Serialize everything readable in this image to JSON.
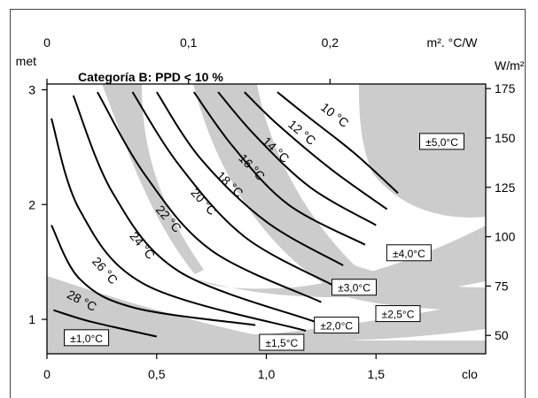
{
  "chart_data": {
    "type": "line",
    "title": "Categoría B: PPD < 10 %",
    "bottom_axis": {
      "unit": "clo",
      "range": [
        0,
        2.0
      ],
      "ticks": [
        0,
        0.5,
        1.0,
        1.5
      ],
      "tick_labels": [
        "0",
        "0,5",
        "1,0",
        "1,5"
      ]
    },
    "top_axis": {
      "unit": "m². °C/W",
      "range": [
        0,
        0.31
      ],
      "ticks": [
        0,
        0.1,
        0.2
      ],
      "tick_labels": [
        "0",
        "0,1",
        "0,2"
      ]
    },
    "left_axis": {
      "unit": "met",
      "range": [
        0.7,
        3.05
      ],
      "ticks": [
        1,
        2,
        3
      ],
      "tick_labels": [
        "1",
        "2",
        "3"
      ]
    },
    "right_axis": {
      "unit": "W/m²",
      "range": [
        40.7,
        177.3
      ],
      "ticks": [
        50,
        75,
        100,
        125,
        150,
        175
      ],
      "tick_labels": [
        "50",
        "75",
        "100",
        "125",
        "150",
        "175"
      ]
    },
    "series": [
      {
        "name": "10 °C",
        "label_at": [
          1.3,
          2.75
        ],
        "points": [
          [
            1.05,
            2.98
          ],
          [
            1.2,
            2.75
          ],
          [
            1.4,
            2.45
          ],
          [
            1.6,
            2.1
          ]
        ]
      },
      {
        "name": "12 °C",
        "label_at": [
          1.15,
          2.6
        ],
        "points": [
          [
            0.9,
            2.98
          ],
          [
            1.05,
            2.7
          ],
          [
            1.3,
            2.3
          ],
          [
            1.55,
            1.96
          ]
        ]
      },
      {
        "name": "14 °C",
        "label_at": [
          1.03,
          2.45
        ],
        "points": [
          [
            0.78,
            2.98
          ],
          [
            0.95,
            2.6
          ],
          [
            1.2,
            2.15
          ],
          [
            1.5,
            1.82
          ]
        ]
      },
      {
        "name": "16 °C",
        "label_at": [
          0.92,
          2.3
        ],
        "points": [
          [
            0.67,
            2.98
          ],
          [
            0.85,
            2.5
          ],
          [
            1.1,
            2.0
          ],
          [
            1.45,
            1.65
          ]
        ]
      },
      {
        "name": "18 °C",
        "label_at": [
          0.82,
          2.15
        ],
        "points": [
          [
            0.5,
            2.98
          ],
          [
            0.7,
            2.4
          ],
          [
            1.0,
            1.85
          ],
          [
            1.35,
            1.47
          ]
        ]
      },
      {
        "name": "20 °C",
        "label_at": [
          0.7,
          2.0
        ],
        "points": [
          [
            0.39,
            2.98
          ],
          [
            0.6,
            2.35
          ],
          [
            0.9,
            1.72
          ],
          [
            1.3,
            1.3
          ]
        ]
      },
      {
        "name": "22 °C",
        "label_at": [
          0.54,
          1.85
        ],
        "points": [
          [
            0.23,
            2.98
          ],
          [
            0.45,
            2.25
          ],
          [
            0.75,
            1.6
          ],
          [
            1.25,
            1.15
          ]
        ]
      },
      {
        "name": "24 °C",
        "label_at": [
          0.42,
          1.62
        ],
        "points": [
          [
            0.12,
            2.95
          ],
          [
            0.3,
            2.1
          ],
          [
            0.6,
            1.42
          ],
          [
            1.22,
            0.98
          ]
        ]
      },
      {
        "name": "26 °C",
        "label_at": [
          0.25,
          1.4
        ],
        "points": [
          [
            0.02,
            2.75
          ],
          [
            0.15,
            1.95
          ],
          [
            0.45,
            1.3
          ],
          [
            1.18,
            0.9
          ]
        ]
      },
      {
        "name": "28 °C",
        "label_at": [
          0.15,
          1.13
        ],
        "points": [
          [
            0.02,
            1.82
          ],
          [
            0.15,
            1.35
          ],
          [
            0.4,
            1.1
          ],
          [
            0.95,
            0.95
          ]
        ]
      },
      {
        "name": "",
        "points": [
          [
            0.03,
            1.08
          ],
          [
            0.2,
            0.98
          ],
          [
            0.5,
            0.85
          ]
        ]
      }
    ],
    "tolerance_labels": [
      {
        "text": "±1,0°C",
        "at": [
          0.18,
          0.84
        ]
      },
      {
        "text": "±1,5°C",
        "at": [
          1.07,
          0.8
        ]
      },
      {
        "text": "±2,0°C",
        "at": [
          1.32,
          0.95
        ]
      },
      {
        "text": "±2,5°C",
        "at": [
          1.6,
          1.05
        ]
      },
      {
        "text": "±3,0°C",
        "at": [
          1.4,
          1.28
        ]
      },
      {
        "text": "±4,0°C",
        "at": [
          1.65,
          1.58
        ]
      },
      {
        "text": "±5,0°C",
        "at": [
          1.8,
          2.55
        ]
      }
    ],
    "colors": {
      "band": "#cccccc",
      "line": "#000000",
      "frame": "#000000"
    }
  }
}
